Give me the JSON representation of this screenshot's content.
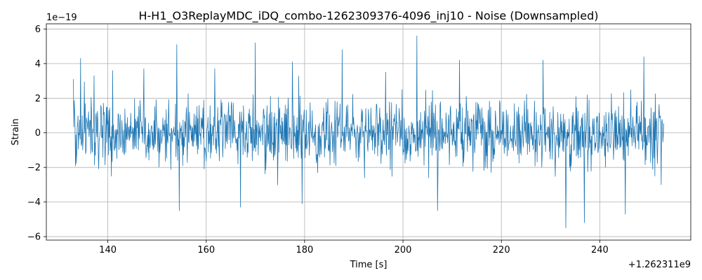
{
  "chart_data": {
    "type": "line",
    "title": "H-H1_O3ReplayMDC_iDQ_combo-1262309376-4096_inj10 - Noise (Downsampled)",
    "xlabel": "Time [s]",
    "ylabel": "Strain",
    "x_offset_label": "+1.262311e9",
    "y_scale_label": "1e−19",
    "xlim": [
      127.5,
      258.5
    ],
    "ylim": [
      -6.2,
      6.3
    ],
    "x_ticks": [
      140,
      160,
      180,
      200,
      220,
      240
    ],
    "x_tick_labels": [
      "140",
      "160",
      "180",
      "200",
      "220",
      "240"
    ],
    "y_ticks": [
      -6,
      -4,
      -2,
      0,
      2,
      4,
      6
    ],
    "y_tick_labels": [
      "−6",
      "−4",
      "−2",
      "0",
      "2",
      "4",
      "6"
    ],
    "grid": true,
    "series": [
      {
        "color": "#1f77b4",
        "x_range": [
          133.0,
          253.0
        ],
        "sample_count": 1400,
        "rms": 0.95,
        "peaks": [
          {
            "x": 133.0,
            "y": 3.1
          },
          {
            "x": 134.5,
            "y": 4.3
          },
          {
            "x": 137.2,
            "y": 3.3
          },
          {
            "x": 141.0,
            "y": 3.6
          },
          {
            "x": 147.3,
            "y": 3.7
          },
          {
            "x": 154.0,
            "y": 5.1
          },
          {
            "x": 154.5,
            "y": -4.5
          },
          {
            "x": 161.7,
            "y": 3.7
          },
          {
            "x": 167.0,
            "y": -4.3
          },
          {
            "x": 170.0,
            "y": 5.2
          },
          {
            "x": 177.5,
            "y": 4.1
          },
          {
            "x": 179.5,
            "y": -4.1
          },
          {
            "x": 187.6,
            "y": 4.8
          },
          {
            "x": 196.5,
            "y": 3.5
          },
          {
            "x": 202.8,
            "y": 5.6
          },
          {
            "x": 207.0,
            "y": -4.5
          },
          {
            "x": 211.5,
            "y": 4.2
          },
          {
            "x": 228.5,
            "y": 4.2
          },
          {
            "x": 233.1,
            "y": -5.5
          },
          {
            "x": 236.9,
            "y": -5.2
          },
          {
            "x": 245.2,
            "y": -4.7
          },
          {
            "x": 249.0,
            "y": 4.4
          },
          {
            "x": 252.5,
            "y": -3.0
          }
        ]
      }
    ]
  }
}
